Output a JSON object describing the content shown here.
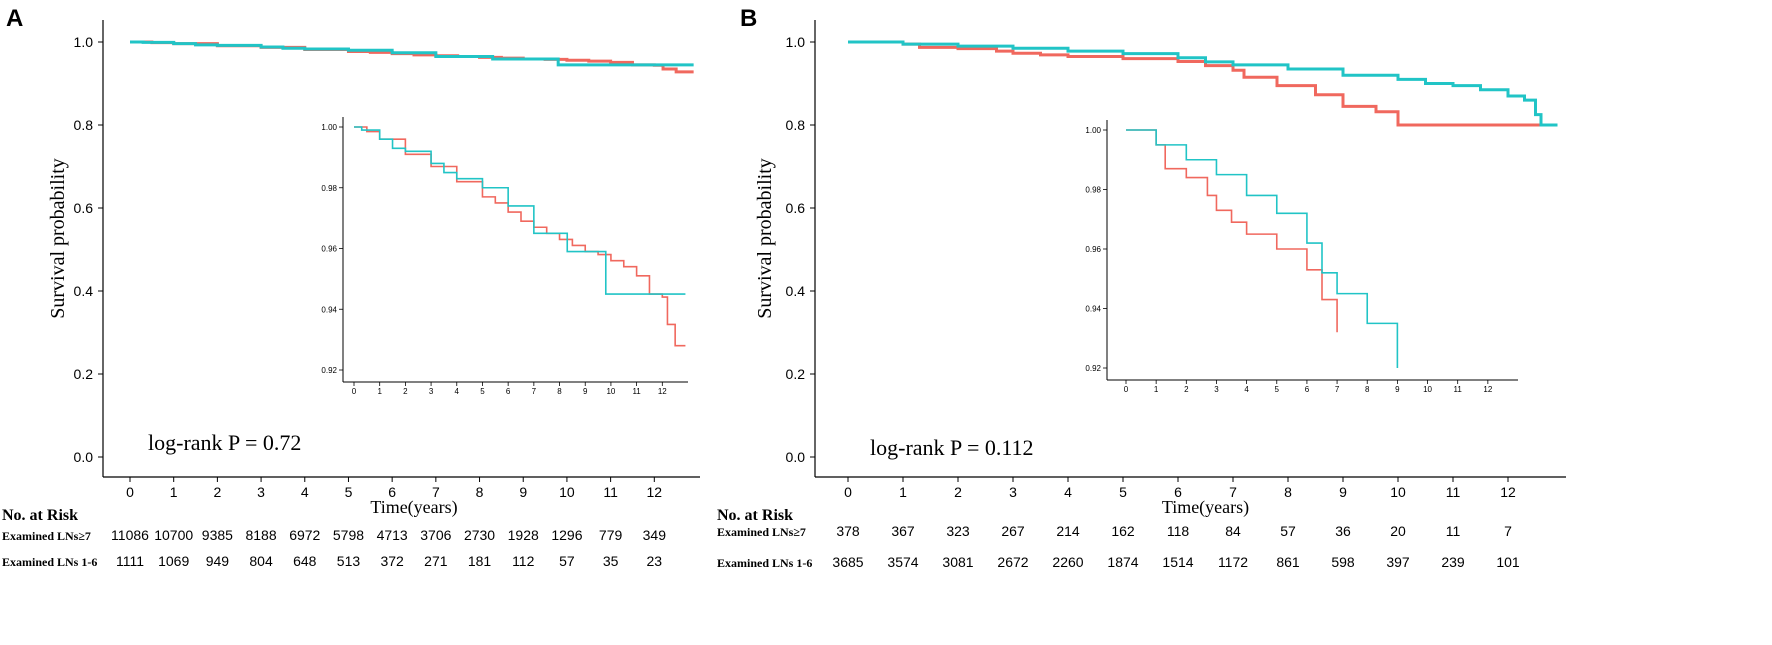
{
  "colors": {
    "line_a": "#f0685e",
    "line_b": "#21c4c6",
    "axis": "#000000"
  },
  "chart_data": [
    {
      "type": "line",
      "panel_label": "A",
      "ylabel": "Survival probability",
      "xlabel": "Time(years)",
      "xlim": [
        0,
        13
      ],
      "ylim": [
        0,
        1
      ],
      "x_ticks": [
        0,
        1,
        2,
        3,
        4,
        5,
        6,
        7,
        8,
        9,
        10,
        11,
        12
      ],
      "y_ticks": [
        "0.0",
        "0.2",
        "0.4",
        "0.6",
        "0.8",
        "1.0"
      ],
      "y_tick_values": [
        0,
        0.2,
        0.4,
        0.6,
        0.8,
        1.0
      ],
      "annotation": "log-rank P = 0.72",
      "series": [
        {
          "name": "Examined LNs 1-6",
          "color": "#f0685e",
          "x": [
            0,
            0.5,
            1,
            2,
            3,
            4,
            5,
            5.5,
            6,
            6.5,
            7,
            7.5,
            8,
            8.5,
            9,
            9.5,
            10,
            10.5,
            11,
            11.5,
            12,
            12.2,
            12.5,
            12.7,
            12.9
          ],
          "y": [
            1,
            0.9985,
            0.996,
            0.991,
            0.987,
            0.982,
            0.977,
            0.975,
            0.972,
            0.969,
            0.967,
            0.965,
            0.963,
            0.961,
            0.959,
            0.958,
            0.956,
            0.954,
            0.951,
            0.945,
            0.944,
            0.935,
            0.928,
            0.928,
            0.928
          ]
        },
        {
          "name": "Examined LNs≥7",
          "color": "#21c4c6",
          "x": [
            0,
            0.3,
            1,
            1.5,
            2,
            3,
            3.5,
            4,
            5,
            5.8,
            6,
            7,
            8.3,
            9.8,
            12,
            12.9
          ],
          "y": [
            1,
            0.999,
            0.996,
            0.993,
            0.992,
            0.988,
            0.985,
            0.983,
            0.98,
            0.98,
            0.974,
            0.965,
            0.959,
            0.945,
            0.945,
            0.945
          ]
        }
      ],
      "inset": {
        "xlim": [
          0,
          13
        ],
        "ylim": [
          0.92,
          1.0
        ],
        "x_ticks": [
          0,
          1,
          2,
          3,
          4,
          5,
          6,
          7,
          8,
          9,
          10,
          11,
          12
        ],
        "y_ticks": [
          "1.00",
          "0.98",
          "0.96",
          "0.94",
          "0.92"
        ],
        "y_tick_values": [
          1.0,
          0.98,
          0.96,
          0.94,
          0.92
        ]
      },
      "risk_table": {
        "title": "No. at Risk",
        "rows": [
          {
            "label": "Examined LNs≥7",
            "values": [
              "11086",
              "10700",
              "9385",
              "8188",
              "6972",
              "5798",
              "4713",
              "3706",
              "2730",
              "1928",
              "1296",
              "779",
              "349"
            ]
          },
          {
            "label": "Examined LNs 1-6",
            "values": [
              "1111",
              "1069",
              "949",
              "804",
              "648",
              "513",
              "372",
              "271",
              "181",
              "112",
              "57",
              "35",
              "23"
            ]
          }
        ]
      }
    },
    {
      "type": "line",
      "panel_label": "B",
      "ylabel": "Survival probability",
      "xlabel": "Time(years)",
      "xlim": [
        0,
        13
      ],
      "ylim": [
        0,
        1
      ],
      "x_ticks": [
        0,
        1,
        2,
        3,
        4,
        5,
        6,
        7,
        8,
        9,
        10,
        11,
        12
      ],
      "y_ticks": [
        "0.0",
        "0.2",
        "0.4",
        "0.6",
        "0.8",
        "1.0"
      ],
      "y_tick_values": [
        0,
        0.2,
        0.4,
        0.6,
        0.8,
        1.0
      ],
      "annotation": "log-rank P = 0.112",
      "series": [
        {
          "name": "Examined LNs≥7",
          "color": "#f0685e",
          "x": [
            0,
            1,
            1.3,
            2,
            2.7,
            3,
            3.5,
            4,
            5,
            6,
            6.5,
            7,
            7.2,
            7.8,
            8.5,
            9,
            9.6,
            10,
            12.9
          ],
          "y": [
            1,
            0.995,
            0.987,
            0.984,
            0.978,
            0.973,
            0.969,
            0.965,
            0.96,
            0.953,
            0.943,
            0.932,
            0.915,
            0.895,
            0.873,
            0.845,
            0.832,
            0.8,
            0.8
          ]
        },
        {
          "name": "Examined LNs 1-6",
          "color": "#21c4c6",
          "x": [
            0,
            1,
            2,
            3,
            4,
            5,
            6,
            6.5,
            7,
            8,
            9,
            10,
            10.5,
            11,
            11.5,
            12,
            12.3,
            12.5,
            12.6,
            12.7,
            12.9
          ],
          "y": [
            1,
            0.995,
            0.99,
            0.985,
            0.978,
            0.972,
            0.962,
            0.952,
            0.945,
            0.935,
            0.92,
            0.91,
            0.9,
            0.895,
            0.885,
            0.87,
            0.86,
            0.825,
            0.8,
            0.8,
            0.8
          ]
        }
      ],
      "inset": {
        "xlim": [
          0,
          13
        ],
        "ylim": [
          0.92,
          1.0
        ],
        "x_ticks": [
          0,
          1,
          2,
          3,
          4,
          5,
          6,
          7,
          8,
          9,
          10,
          11,
          12
        ],
        "y_ticks": [
          "1.00",
          "0.98",
          "0.96",
          "0.94",
          "0.92"
        ],
        "y_tick_values": [
          1.0,
          0.98,
          0.96,
          0.94,
          0.92
        ]
      },
      "risk_table": {
        "title": "No. at Risk",
        "rows": [
          {
            "label": "Examined LNs≥7",
            "values": [
              "378",
              "367",
              "323",
              "267",
              "214",
              "162",
              "118",
              "84",
              "57",
              "36",
              "20",
              "11",
              "7"
            ]
          },
          {
            "label": "Examined LNs 1-6",
            "values": [
              "3685",
              "3574",
              "3081",
              "2672",
              "2260",
              "1874",
              "1514",
              "1172",
              "861",
              "598",
              "397",
              "239",
              "101"
            ]
          }
        ]
      }
    }
  ]
}
